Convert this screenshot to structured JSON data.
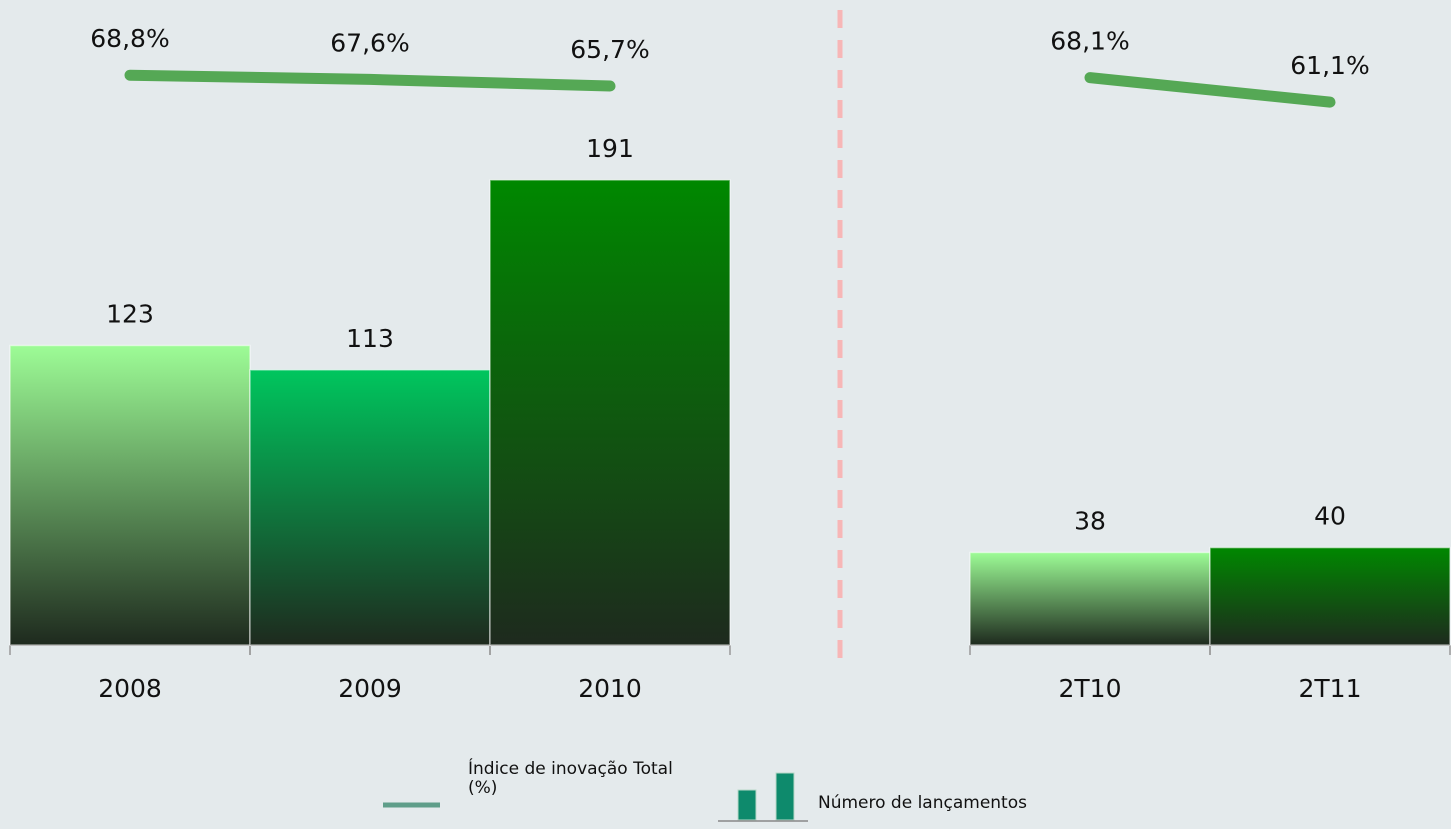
{
  "chart_data": {
    "type": "bar",
    "categories": [
      "2008",
      "2009",
      "2010",
      null,
      "2T10",
      "2T11"
    ],
    "series": [
      {
        "name": "Número de lançamentos",
        "type": "bar",
        "colors": [
          "#9dfc96",
          "#00c65e",
          "#008800",
          null,
          "#9dfc96",
          "#008800"
        ],
        "values": [
          123,
          113,
          191,
          null,
          38,
          40
        ]
      },
      {
        "name": "Índice de inovação Total (%)",
        "type": "line",
        "axis": "y2",
        "color": "#55a855",
        "values": [
          68.8,
          67.6,
          65.7,
          null,
          68.1,
          61.1
        ],
        "value_labels": [
          "68,8%",
          "67,6%",
          "65,7%",
          null,
          "68,1%",
          "61,1%"
        ]
      }
    ],
    "ylim": [
      0,
      200
    ],
    "y2lim": [
      0,
      90
    ]
  }
}
